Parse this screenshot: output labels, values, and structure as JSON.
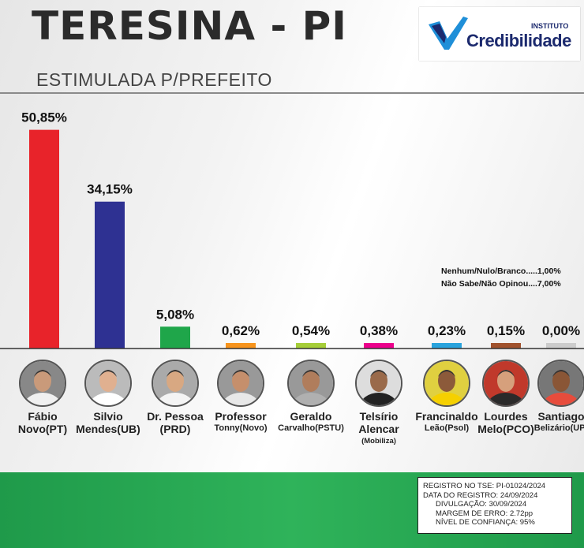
{
  "header": {
    "title": "TERESINA - PI",
    "subtitle": "ESTIMULADA P/PREFEITO"
  },
  "logo": {
    "small": "INSTITUTO",
    "big": "Credibilidade"
  },
  "notes": {
    "line1": "Nenhum/Nulo/Branco.....1,00%",
    "line2": "Não Sabe/Não Opinou....7,00%"
  },
  "colors": {
    "bar1": "#e8232a",
    "bar2": "#2e3192",
    "bar3": "#1fa64a",
    "bar4": "#f7941d",
    "bar5": "#a6ce39",
    "bar6": "#ec008c",
    "bar7": "#29a3dd",
    "bar8": "#a0522d",
    "bar9": "#cccccc"
  },
  "chart_data": {
    "type": "bar",
    "title": "ESTIMULADA P/PREFEITO",
    "categories": [
      "Fábio Novo(PT)",
      "Silvio Mendes(UB)",
      "Dr. Pessoa (PRD)",
      "Professor Tonny(Novo)",
      "Geraldo Carvalho(PSTU)",
      "Telsírio Alencar (Mobiliza)",
      "Francinaldo Leão(Psol)",
      "Lourdes Melo(PCO)",
      "Santiago Belizário(UP)"
    ],
    "values": [
      50.85,
      34.15,
      5.08,
      0.62,
      0.54,
      0.38,
      0.23,
      0.15,
      0.0
    ],
    "labels": [
      "50,85%",
      "34,15%",
      "5,08%",
      "0,62%",
      "0,54%",
      "0,38%",
      "0,23%",
      "0,15%",
      "0,00%"
    ],
    "ylim": [
      0,
      55
    ],
    "grid": false,
    "legend": "none"
  },
  "candidates": [
    {
      "line1": "Fábio",
      "line2": "Novo(PT)",
      "line3": ""
    },
    {
      "line1": "Silvio",
      "line2": "Mendes(UB)",
      "line3": ""
    },
    {
      "line1": "Dr. Pessoa",
      "line2": "(PRD)",
      "line3": ""
    },
    {
      "line1": "Professor",
      "line2": "Tonny(Novo)",
      "line3": ""
    },
    {
      "line1": "Geraldo",
      "line2": "Carvalho(PSTU)",
      "line3": ""
    },
    {
      "line1": "Telsírio",
      "line2": "Alencar",
      "line3": "(Mobiliza)"
    },
    {
      "line1": "Francinaldo",
      "line2": "Leão(Psol)",
      "line3": ""
    },
    {
      "line1": "Lourdes",
      "line2": "Melo(PCO)",
      "line3": ""
    },
    {
      "line1": "Santiago",
      "line2": "Belizário(UP)",
      "line3": ""
    }
  ],
  "registry": {
    "line1": "REGISTRO NO TSE: PI-01024/2024",
    "line2": "DATA DO REGISTRO: 24/09/2024",
    "line3": "DIVULGAÇÃO: 30/09/2024",
    "line4": "MARGEM DE ERRO: 2.72pp",
    "line5": "NÍVEL DE CONFIANÇA: 95%"
  }
}
